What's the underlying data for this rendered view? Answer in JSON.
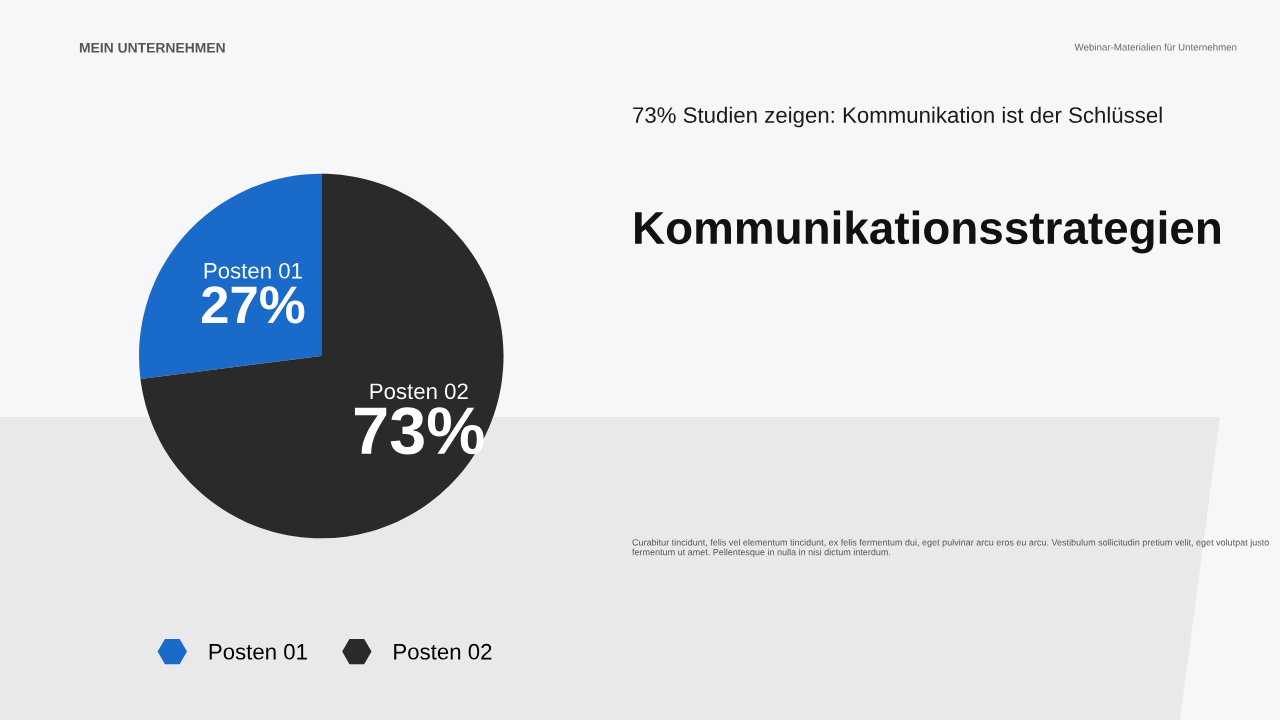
{
  "chart_data": {
    "type": "pie",
    "title": "Kommunikationsstrategien",
    "subtitle": "73% Studien zeigen: Kommunikation ist der Schlüssel",
    "categories": [
      "Posten 01",
      "Posten 02"
    ],
    "values": [
      27,
      73
    ],
    "value_labels": [
      "27%",
      "73%"
    ],
    "colors": [
      "#1a6bc9",
      "#2a2a2a"
    ],
    "legend": "bottom",
    "annotations": [
      "MEIN UNTERNEHMEN",
      "Webinar-Materialien für Unternehmen",
      "Curabitur tincidunt, felis vel elementum tincidunt, ex felis fermentum dui, eget pulvinar arcu eros eu arcu. Vestibulum sollicitudin pretium velit, eget volutpat justo fermentum ut amet. Pellentesque in nulla in nisi dictum interdum."
    ]
  }
}
